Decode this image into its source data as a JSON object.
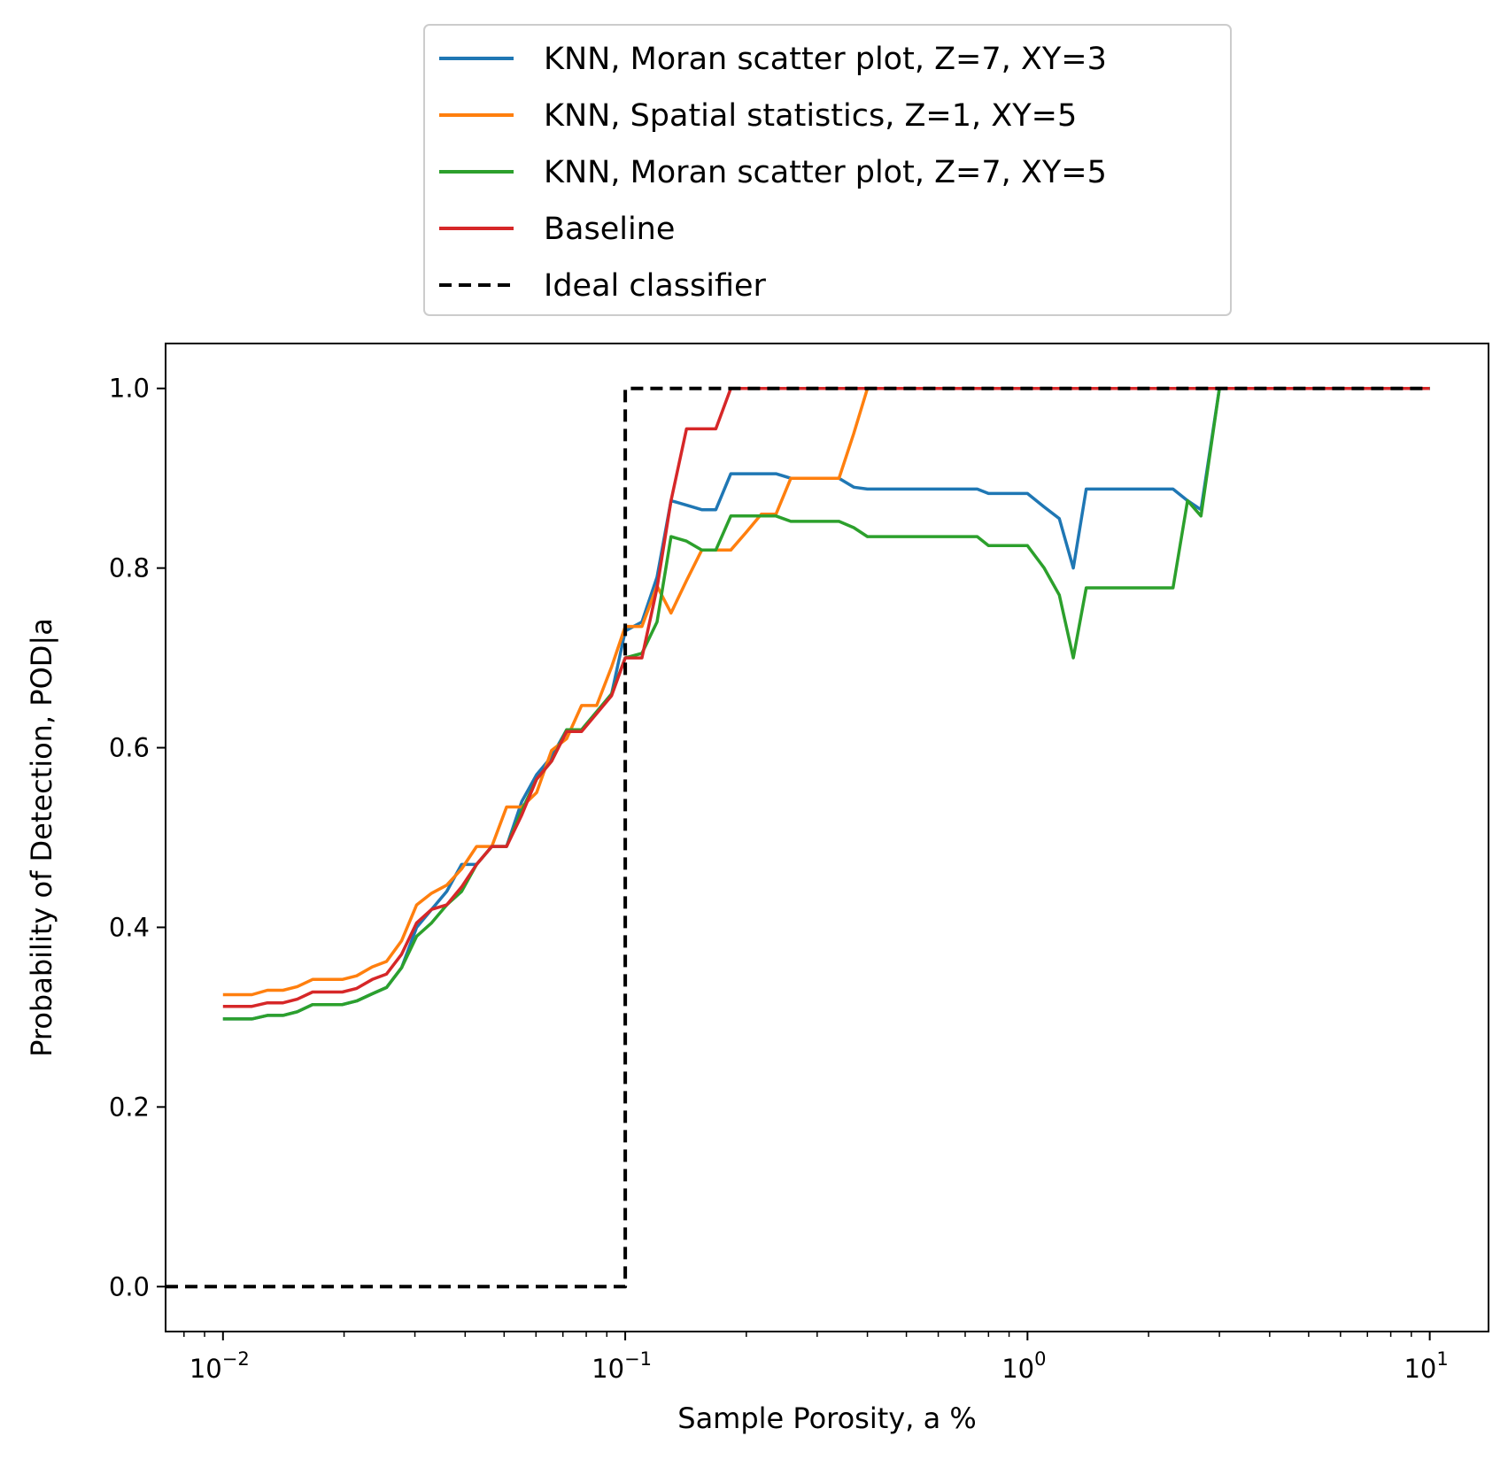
{
  "chart_data": {
    "type": "line",
    "xlabel": "Sample Porosity, a %",
    "ylabel": "Probability of Detection, POD|a",
    "xscale": "log",
    "xlim": [
      0.0072,
      14
    ],
    "ylim": [
      -0.05,
      1.05
    ],
    "xticks": [
      {
        "value": 0.01,
        "base": "10",
        "exp": "−2"
      },
      {
        "value": 0.1,
        "base": "10",
        "exp": "−1"
      },
      {
        "value": 1,
        "base": "10",
        "exp": "0"
      },
      {
        "value": 10,
        "base": "10",
        "exp": "1"
      }
    ],
    "yticks": [
      {
        "value": 0.0,
        "label": "0.0"
      },
      {
        "value": 0.2,
        "label": "0.2"
      },
      {
        "value": 0.4,
        "label": "0.4"
      },
      {
        "value": 0.6,
        "label": "0.6"
      },
      {
        "value": 0.8,
        "label": "0.8"
      },
      {
        "value": 1.0,
        "label": "1.0"
      }
    ],
    "grid": false,
    "legend_position": "above plot, centered",
    "series": [
      {
        "name": "KNN, Moran scatter plot, Z=7, XY=3",
        "color": "#1f77b4",
        "dash": "solid",
        "x": [
          0.01,
          0.0109,
          0.0118,
          0.0129,
          0.0141,
          0.0153,
          0.0167,
          0.0182,
          0.0198,
          0.0215,
          0.0235,
          0.0255,
          0.0278,
          0.0303,
          0.033,
          0.036,
          0.0392,
          0.0427,
          0.0466,
          0.0507,
          0.0553,
          0.0602,
          0.0656,
          0.0715,
          0.0779,
          0.0849,
          0.0925,
          0.1,
          0.11,
          0.12,
          0.13,
          0.142,
          0.155,
          0.168,
          0.183,
          0.2,
          0.218,
          0.237,
          0.258,
          0.28,
          0.31,
          0.34,
          0.37,
          0.4,
          0.5,
          0.6,
          0.7,
          0.75,
          0.8,
          0.9,
          1.0,
          1.1,
          1.2,
          1.3,
          1.4,
          1.5,
          2.0,
          2.3,
          2.5,
          2.7,
          3.0,
          10.0
        ],
        "y": [
          0.298,
          0.298,
          0.298,
          0.302,
          0.302,
          0.306,
          0.314,
          0.314,
          0.314,
          0.318,
          0.326,
          0.333,
          0.355,
          0.4,
          0.42,
          0.44,
          0.47,
          0.47,
          0.49,
          0.49,
          0.54,
          0.57,
          0.59,
          0.62,
          0.62,
          0.64,
          0.66,
          0.73,
          0.74,
          0.79,
          0.875,
          0.87,
          0.865,
          0.865,
          0.905,
          0.905,
          0.905,
          0.905,
          0.9,
          0.9,
          0.9,
          0.9,
          0.89,
          0.888,
          0.888,
          0.888,
          0.888,
          0.888,
          0.883,
          0.883,
          0.883,
          0.868,
          0.855,
          0.8,
          0.888,
          0.888,
          0.888,
          0.888,
          0.875,
          0.865,
          1.0,
          1.0
        ]
      },
      {
        "name": "KNN, Spatial statistics, Z=1, XY=5",
        "color": "#ff7f0e",
        "dash": "solid",
        "x": [
          0.01,
          0.0109,
          0.0118,
          0.0129,
          0.0141,
          0.0153,
          0.0167,
          0.0182,
          0.0198,
          0.0215,
          0.0235,
          0.0255,
          0.0278,
          0.0303,
          0.033,
          0.036,
          0.0392,
          0.0427,
          0.0466,
          0.0507,
          0.0553,
          0.0602,
          0.0656,
          0.0715,
          0.0779,
          0.0849,
          0.0925,
          0.1,
          0.11,
          0.12,
          0.13,
          0.142,
          0.155,
          0.168,
          0.183,
          0.2,
          0.218,
          0.237,
          0.258,
          0.28,
          0.31,
          0.34,
          0.37,
          0.4,
          10.0
        ],
        "y": [
          0.325,
          0.325,
          0.325,
          0.33,
          0.33,
          0.334,
          0.342,
          0.342,
          0.342,
          0.346,
          0.356,
          0.362,
          0.385,
          0.425,
          0.438,
          0.447,
          0.465,
          0.49,
          0.49,
          0.534,
          0.534,
          0.55,
          0.597,
          0.61,
          0.647,
          0.647,
          0.69,
          0.735,
          0.735,
          0.78,
          0.75,
          0.786,
          0.82,
          0.82,
          0.82,
          0.84,
          0.86,
          0.86,
          0.9,
          0.9,
          0.9,
          0.9,
          0.95,
          1.0,
          1.0
        ]
      },
      {
        "name": "KNN, Moran scatter plot, Z=7, XY=5",
        "color": "#2ca02c",
        "dash": "solid",
        "x": [
          0.01,
          0.0109,
          0.0118,
          0.0129,
          0.0141,
          0.0153,
          0.0167,
          0.0182,
          0.0198,
          0.0215,
          0.0235,
          0.0255,
          0.0278,
          0.0303,
          0.033,
          0.036,
          0.0392,
          0.0427,
          0.0466,
          0.0507,
          0.0553,
          0.0602,
          0.0656,
          0.0715,
          0.0779,
          0.0849,
          0.0925,
          0.1,
          0.11,
          0.12,
          0.13,
          0.142,
          0.155,
          0.168,
          0.183,
          0.2,
          0.218,
          0.237,
          0.258,
          0.28,
          0.31,
          0.34,
          0.37,
          0.4,
          0.5,
          0.6,
          0.7,
          0.75,
          0.8,
          0.9,
          1.0,
          1.1,
          1.2,
          1.3,
          1.4,
          1.5,
          2.0,
          2.3,
          2.5,
          2.7,
          3.0,
          10.0
        ],
        "y": [
          0.298,
          0.298,
          0.298,
          0.302,
          0.302,
          0.306,
          0.314,
          0.314,
          0.314,
          0.318,
          0.326,
          0.333,
          0.355,
          0.39,
          0.405,
          0.425,
          0.44,
          0.47,
          0.49,
          0.49,
          0.53,
          0.565,
          0.585,
          0.62,
          0.62,
          0.64,
          0.66,
          0.7,
          0.705,
          0.74,
          0.835,
          0.83,
          0.82,
          0.82,
          0.858,
          0.858,
          0.858,
          0.858,
          0.852,
          0.852,
          0.852,
          0.852,
          0.845,
          0.835,
          0.835,
          0.835,
          0.835,
          0.835,
          0.825,
          0.825,
          0.825,
          0.8,
          0.77,
          0.7,
          0.778,
          0.778,
          0.778,
          0.778,
          0.875,
          0.858,
          1.0,
          1.0
        ]
      },
      {
        "name": "Baseline",
        "color": "#d62728",
        "dash": "solid",
        "x": [
          0.01,
          0.0109,
          0.0118,
          0.0129,
          0.0141,
          0.0153,
          0.0167,
          0.0182,
          0.0198,
          0.0215,
          0.0235,
          0.0255,
          0.0278,
          0.0303,
          0.033,
          0.036,
          0.0392,
          0.0427,
          0.0466,
          0.0507,
          0.0553,
          0.0602,
          0.0656,
          0.0715,
          0.0779,
          0.0849,
          0.0925,
          0.1,
          0.11,
          0.12,
          0.13,
          0.142,
          0.155,
          0.168,
          0.183,
          0.2,
          10.0
        ],
        "y": [
          0.312,
          0.312,
          0.312,
          0.316,
          0.316,
          0.32,
          0.328,
          0.328,
          0.328,
          0.332,
          0.342,
          0.348,
          0.37,
          0.405,
          0.42,
          0.425,
          0.445,
          0.47,
          0.49,
          0.49,
          0.525,
          0.565,
          0.585,
          0.618,
          0.618,
          0.638,
          0.658,
          0.7,
          0.7,
          0.778,
          0.875,
          0.955,
          0.955,
          0.955,
          1.0,
          1.0,
          1.0
        ]
      },
      {
        "name": "Ideal classifier",
        "color": "#000000",
        "dash": "dashed",
        "x": [
          0.0072,
          0.1,
          0.1,
          10.0
        ],
        "y": [
          0.0,
          0.0,
          1.0,
          1.0
        ]
      }
    ]
  }
}
